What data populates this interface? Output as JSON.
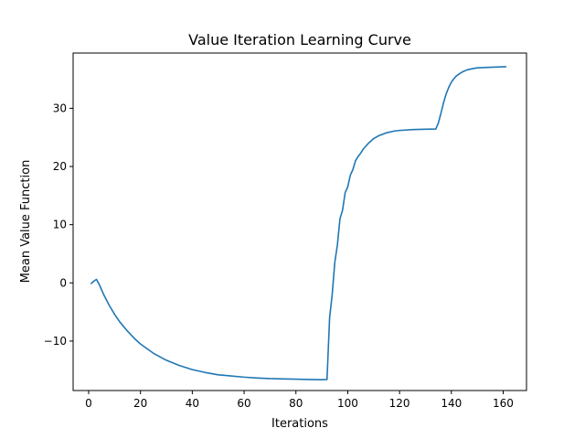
{
  "chart_data": {
    "type": "line",
    "title": "Value Iteration Learning Curve",
    "xlabel": "Iterations",
    "ylabel": "Mean Value Function",
    "xlim": [
      -6,
      169
    ],
    "ylim": [
      -18.5,
      39.5
    ],
    "xticks": [
      0,
      20,
      40,
      60,
      80,
      100,
      120,
      140,
      160
    ],
    "xtick_labels": [
      "0",
      "20",
      "40",
      "60",
      "80",
      "100",
      "120",
      "140",
      "160"
    ],
    "yticks": [
      -10,
      0,
      10,
      20,
      30
    ],
    "ytick_labels": [
      "−10",
      "0",
      "10",
      "20",
      "30"
    ],
    "grid": false,
    "legend": "none",
    "series_color": "#1f77b4",
    "series": [
      {
        "x": [
          1,
          2,
          3,
          4,
          5,
          6,
          8,
          10,
          12,
          15,
          18,
          20,
          25,
          30,
          35,
          40,
          45,
          50,
          55,
          60,
          65,
          70,
          75,
          80,
          85,
          90,
          92,
          93,
          94,
          95,
          96,
          97,
          98,
          99,
          100,
          101,
          102,
          103,
          104,
          105,
          106,
          108,
          110,
          112,
          115,
          118,
          120,
          125,
          130,
          134,
          135,
          136,
          137,
          138,
          139,
          140,
          141,
          142,
          143,
          144,
          146,
          148,
          150,
          155,
          161
        ],
        "y": [
          -0.1,
          0.3,
          0.6,
          -0.2,
          -1.2,
          -2.2,
          -3.9,
          -5.4,
          -6.7,
          -8.3,
          -9.7,
          -10.5,
          -12.1,
          -13.3,
          -14.2,
          -14.9,
          -15.4,
          -15.8,
          -16.0,
          -16.2,
          -16.35,
          -16.45,
          -16.5,
          -16.55,
          -16.6,
          -16.65,
          -16.6,
          -6.0,
          -2.0,
          3.5,
          6.5,
          11.0,
          12.5,
          15.5,
          16.5,
          18.5,
          19.5,
          21.0,
          21.7,
          22.3,
          23.0,
          24.0,
          24.8,
          25.3,
          25.8,
          26.1,
          26.2,
          26.35,
          26.4,
          26.45,
          27.5,
          29.2,
          31.0,
          32.5,
          33.6,
          34.5,
          35.1,
          35.6,
          35.9,
          36.2,
          36.6,
          36.8,
          36.95,
          37.05,
          37.15
        ]
      }
    ]
  }
}
